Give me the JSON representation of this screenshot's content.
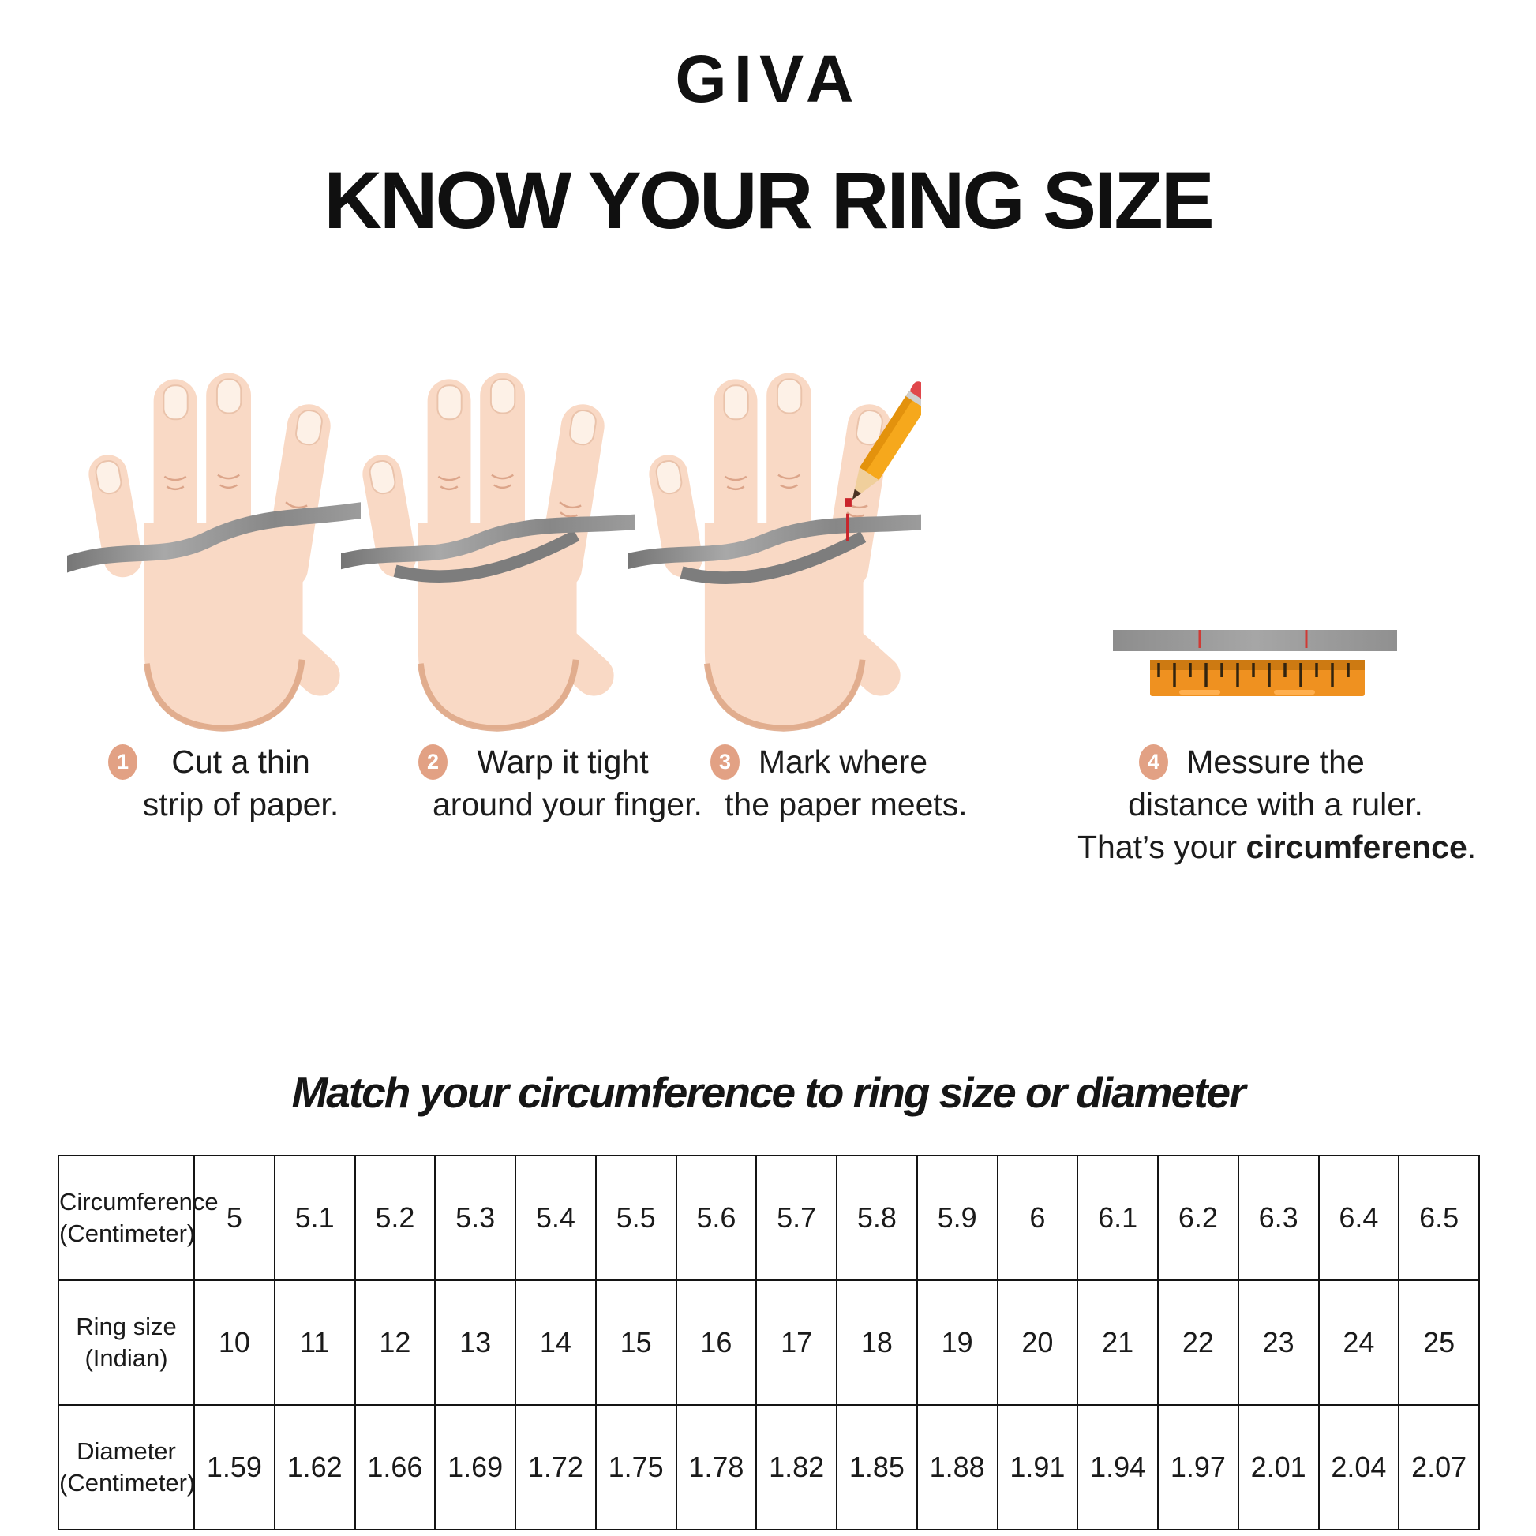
{
  "brand": "GIVA",
  "title": "KNOW YOUR RING SIZE",
  "subtitle": "Match your circumference to ring size or diameter",
  "steps": [
    {
      "number": "1",
      "line1": "Cut a thin",
      "line2": "strip of paper."
    },
    {
      "number": "2",
      "line1": "Warp it tight",
      "line2": "around your finger."
    },
    {
      "number": "3",
      "line1": "Mark where",
      "line2": "the paper meets."
    },
    {
      "number": "4",
      "line1": "Messure the",
      "line2": "distance with a ruler.",
      "line3_prefix": "That’s your ",
      "line3_bold": "circumference",
      "line3_suffix": "."
    }
  ],
  "illustrations": [
    "hand-with-paper-strip-icon",
    "hand-strip-wrapped-around-finger-icon",
    "hand-pencil-marking-strip-icon",
    "paper-strip-and-ruler-icon"
  ],
  "table": {
    "rows": [
      {
        "label_lines": [
          "Circumference",
          "(Centimeter)"
        ],
        "values": [
          "5",
          "5.1",
          "5.2",
          "5.3",
          "5.4",
          "5.5",
          "5.6",
          "5.7",
          "5.8",
          "5.9",
          "6",
          "6.1",
          "6.2",
          "6.3",
          "6.4",
          "6.5"
        ]
      },
      {
        "label_lines": [
          "Ring size",
          "(Indian)"
        ],
        "values": [
          "10",
          "11",
          "12",
          "13",
          "14",
          "15",
          "16",
          "17",
          "18",
          "19",
          "20",
          "21",
          "22",
          "23",
          "24",
          "25"
        ]
      },
      {
        "label_lines": [
          "Diameter",
          "(Centimeter)"
        ],
        "values": [
          "1.59",
          "1.62",
          "1.66",
          "1.69",
          "1.72",
          "1.75",
          "1.78",
          "1.82",
          "1.85",
          "1.88",
          "1.91",
          "1.94",
          "1.97",
          "2.01",
          "2.04",
          "2.07"
        ]
      }
    ]
  },
  "colors": {
    "text": "#1a1a1a",
    "step_badge": "#e2a184",
    "skin": "#f9d9c5",
    "skin_shadow": "#dda584",
    "nail": "#fdf1e7",
    "nail_stroke": "#eac3ab",
    "strip_gray": "#8e8e8e",
    "mark_red": "#c9252b",
    "pencil_yellow": "#f6a81c",
    "pencil_yellow_dark": "#e3920d",
    "eraser_red": "#e0474b",
    "ruler_orange": "#ef9120",
    "ruler_orange_dark": "#cd7a12",
    "ruler_tick": "#33240f"
  }
}
